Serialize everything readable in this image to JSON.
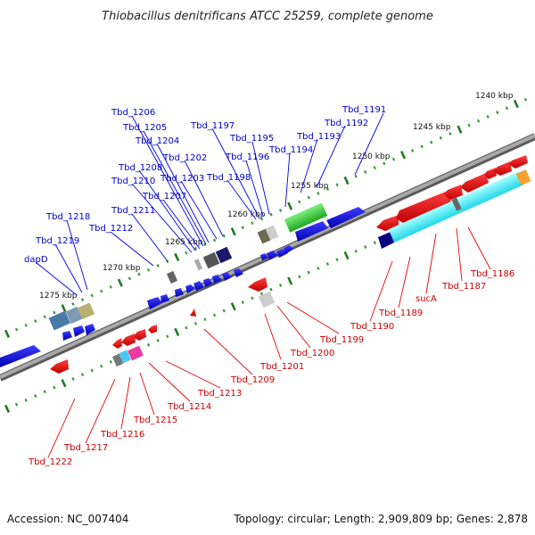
{
  "title": "Thiobacillus denitrificans ATCC 25259, complete genome",
  "footer": {
    "accession": "Accession: NC_007404",
    "summary": "Topology: circular; Length: 2,909,809 bp; Genes: 2,878"
  },
  "scale_labels": [
    "1240 kbp",
    "1245 kbp",
    "1250 kbp",
    "1255 kbp",
    "1260 kbp",
    "1265 kbp",
    "1270 kbp",
    "1275 kbp"
  ],
  "top_gene_labels": [
    "Tbd_1191",
    "Tbd_1192",
    "Tbd_1193",
    "Tbd_1194",
    "Tbd_1195",
    "Tbd_1196",
    "Tbd_1197",
    "Tbd_1198",
    "Tbd_1202",
    "Tbd_1203",
    "Tbd_1204",
    "Tbd_1205",
    "Tbd_1206",
    "Tbd_1207",
    "Tbd_1208",
    "Tbd_1210",
    "Tbd_1211",
    "Tbd_1212",
    "Tbd_1218",
    "Tbd_1219",
    "dapD"
  ],
  "bottom_gene_labels": [
    "Tbd_1186",
    "Tbd_1187",
    "sucA",
    "Tbd_1189",
    "Tbd_1190",
    "Tbd_1199",
    "Tbd_1200",
    "Tbd_1201",
    "Tbd_1209",
    "Tbd_1213",
    "Tbd_1214",
    "Tbd_1215",
    "Tbd_1216",
    "Tbd_1217",
    "Tbd_1222"
  ],
  "colors": {
    "forward_strand": "#0000ee",
    "reverse_strand": "#ee0000",
    "backbone": "#8c8c8c",
    "scale_marks": "#2a8a2a"
  }
}
